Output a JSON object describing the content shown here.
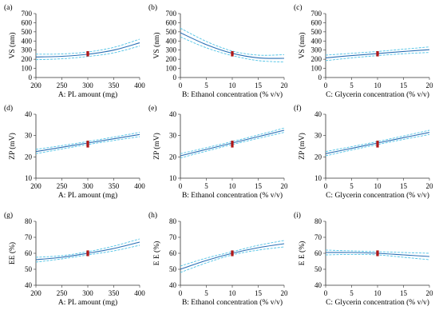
{
  "chart_data": [
    {
      "type": "line",
      "panel": "(a)",
      "xlabel": "A: PL amount (mg)",
      "ylabel": "VS (nm)",
      "xlim": [
        200,
        400
      ],
      "ylim": [
        0,
        700
      ],
      "xticks": [
        200,
        250,
        300,
        350,
        400
      ],
      "yticks": [
        0,
        100,
        200,
        300,
        400,
        500,
        600,
        700
      ],
      "x": [
        200,
        250,
        300,
        350,
        400
      ],
      "series": [
        {
          "role": "fit",
          "values": [
            225,
            232,
            255,
            300,
            380
          ]
        },
        {
          "role": "upper",
          "values": [
            255,
            258,
            280,
            330,
            420
          ]
        },
        {
          "role": "lower",
          "values": [
            195,
            205,
            230,
            270,
            345
          ]
        }
      ],
      "design_points": {
        "x": 300,
        "values": [
          245,
          260,
          275
        ]
      }
    },
    {
      "type": "line",
      "panel": "(b)",
      "xlabel": "B: Ethanol concentration (% v/v)",
      "ylabel": "VS (nm)",
      "xlim": [
        0,
        20
      ],
      "ylim": [
        0,
        700
      ],
      "xticks": [
        0,
        5,
        10,
        15,
        20
      ],
      "yticks": [
        0,
        100,
        200,
        300,
        400,
        500,
        600,
        700
      ],
      "x": [
        0,
        5,
        10,
        15,
        20
      ],
      "series": [
        {
          "role": "fit",
          "values": [
            490,
            360,
            265,
            215,
            210
          ]
        },
        {
          "role": "upper",
          "values": [
            540,
            395,
            290,
            245,
            250
          ]
        },
        {
          "role": "lower",
          "values": [
            445,
            325,
            240,
            185,
            170
          ]
        }
      ],
      "design_points": {
        "x": 10,
        "values": [
          245,
          260,
          275
        ]
      }
    },
    {
      "type": "line",
      "panel": "(c)",
      "xlabel": "C: Glycerin concentration (% v/v)",
      "ylabel": "VS (nm)",
      "xlim": [
        0,
        20
      ],
      "ylim": [
        0,
        700
      ],
      "xticks": [
        0,
        5,
        10,
        15,
        20
      ],
      "yticks": [
        0,
        100,
        200,
        300,
        400,
        500,
        600,
        700
      ],
      "x": [
        0,
        5,
        10,
        15,
        20
      ],
      "series": [
        {
          "role": "fit",
          "values": [
            215,
            240,
            262,
            285,
            305
          ]
        },
        {
          "role": "upper",
          "values": [
            245,
            265,
            285,
            310,
            335
          ]
        },
        {
          "role": "lower",
          "values": [
            185,
            215,
            240,
            260,
            275
          ]
        }
      ],
      "design_points": {
        "x": 10,
        "values": [
          245,
          260,
          275
        ]
      }
    },
    {
      "type": "line",
      "panel": "(d)",
      "xlabel": "A: PL amount (mg)",
      "ylabel": "ZP (mV)",
      "xlim": [
        200,
        400
      ],
      "ylim": [
        10,
        40
      ],
      "xticks": [
        200,
        250,
        300,
        350,
        400
      ],
      "yticks": [
        10,
        20,
        30,
        40
      ],
      "x": [
        200,
        250,
        300,
        350,
        400
      ],
      "series": [
        {
          "role": "fit",
          "values": [
            22.5,
            24.5,
            26.5,
            28.5,
            30.5
          ]
        },
        {
          "role": "upper",
          "values": [
            23.5,
            25.3,
            27.2,
            29.3,
            31.5
          ]
        },
        {
          "role": "lower",
          "values": [
            21.5,
            23.7,
            25.8,
            27.7,
            29.5
          ]
        }
      ],
      "design_points": {
        "x": 300,
        "values": [
          25,
          26,
          27
        ]
      }
    },
    {
      "type": "line",
      "panel": "(e)",
      "xlabel": "B: Ethanol concentration (% v/v)",
      "ylabel": "ZP (mV)",
      "xlim": [
        0,
        20
      ],
      "ylim": [
        10,
        40
      ],
      "xticks": [
        0,
        5,
        10,
        15,
        20
      ],
      "yticks": [
        10,
        20,
        30,
        40
      ],
      "x": [
        0,
        5,
        10,
        15,
        20
      ],
      "series": [
        {
          "role": "fit",
          "values": [
            20.5,
            23.5,
            26.5,
            29.5,
            32.5
          ]
        },
        {
          "role": "upper",
          "values": [
            21.5,
            24.3,
            27.2,
            30.3,
            33.5
          ]
        },
        {
          "role": "lower",
          "values": [
            19.5,
            22.7,
            25.8,
            28.7,
            31.5
          ]
        }
      ],
      "design_points": {
        "x": 10,
        "values": [
          25,
          26,
          27
        ]
      }
    },
    {
      "type": "line",
      "panel": "(f)",
      "xlabel": "C: Glycerin concentration (% v/v)",
      "ylabel": "ZP (mV)",
      "xlim": [
        0,
        20
      ],
      "ylim": [
        10,
        40
      ],
      "xticks": [
        0,
        5,
        10,
        15,
        20
      ],
      "yticks": [
        10,
        20,
        30,
        40
      ],
      "x": [
        0,
        5,
        10,
        15,
        20
      ],
      "series": [
        {
          "role": "fit",
          "values": [
            21.5,
            24,
            26.5,
            29,
            31.5
          ]
        },
        {
          "role": "upper",
          "values": [
            22.5,
            24.8,
            27.2,
            29.8,
            32.5
          ]
        },
        {
          "role": "lower",
          "values": [
            20.5,
            23.2,
            25.8,
            28.2,
            30.5
          ]
        }
      ],
      "design_points": {
        "x": 10,
        "values": [
          25,
          26,
          27
        ]
      }
    },
    {
      "type": "line",
      "panel": "(g)",
      "xlabel": "A: PL amount (mg)",
      "ylabel": "EE (%)",
      "xlim": [
        200,
        400
      ],
      "ylim": [
        40,
        80
      ],
      "xticks": [
        200,
        250,
        300,
        350,
        400
      ],
      "yticks": [
        40,
        50,
        60,
        70,
        80
      ],
      "x": [
        200,
        250,
        300,
        350,
        400
      ],
      "series": [
        {
          "role": "fit",
          "values": [
            56,
            57.5,
            60,
            63,
            67
          ]
        },
        {
          "role": "upper",
          "values": [
            57.5,
            58.5,
            61,
            64.5,
            69
          ]
        },
        {
          "role": "lower",
          "values": [
            54.5,
            56.5,
            59,
            61.5,
            65
          ]
        }
      ],
      "design_points": {
        "x": 300,
        "values": [
          59,
          60,
          61
        ]
      }
    },
    {
      "type": "line",
      "panel": "(h)",
      "xlabel": "B: Ethanol concentration (% v/v)",
      "ylabel": "E E (%)",
      "xlim": [
        0,
        20
      ],
      "ylim": [
        40,
        80
      ],
      "xticks": [
        0,
        5,
        10,
        15,
        20
      ],
      "yticks": [
        40,
        50,
        60,
        70,
        80
      ],
      "x": [
        0,
        5,
        10,
        15,
        20
      ],
      "series": [
        {
          "role": "fit",
          "values": [
            50,
            55.5,
            60,
            63.5,
            66
          ]
        },
        {
          "role": "upper",
          "values": [
            52,
            57,
            61,
            65,
            68
          ]
        },
        {
          "role": "lower",
          "values": [
            48,
            54,
            59,
            62,
            64
          ]
        }
      ],
      "design_points": {
        "x": 10,
        "values": [
          59,
          60,
          61
        ]
      }
    },
    {
      "type": "line",
      "panel": "(i)",
      "xlabel": "C: Glycerin concentration (% v/v)",
      "ylabel": "E E (%)",
      "xlim": [
        0,
        20
      ],
      "ylim": [
        40,
        80
      ],
      "xticks": [
        0,
        5,
        10,
        15,
        20
      ],
      "yticks": [
        40,
        50,
        60,
        70,
        80
      ],
      "x": [
        0,
        5,
        10,
        15,
        20
      ],
      "series": [
        {
          "role": "fit",
          "values": [
            60.5,
            60.5,
            60,
            59,
            58
          ]
        },
        {
          "role": "upper",
          "values": [
            62,
            61.5,
            61,
            60.5,
            60
          ]
        },
        {
          "role": "lower",
          "values": [
            59,
            59.3,
            59,
            57.5,
            56
          ]
        }
      ],
      "design_points": {
        "x": 10,
        "values": [
          59,
          60,
          61
        ]
      }
    }
  ],
  "colors": {
    "fit": "#2a6fb5",
    "ci": "#4fc3e6",
    "points": "#b21818",
    "axis": "#333333"
  }
}
